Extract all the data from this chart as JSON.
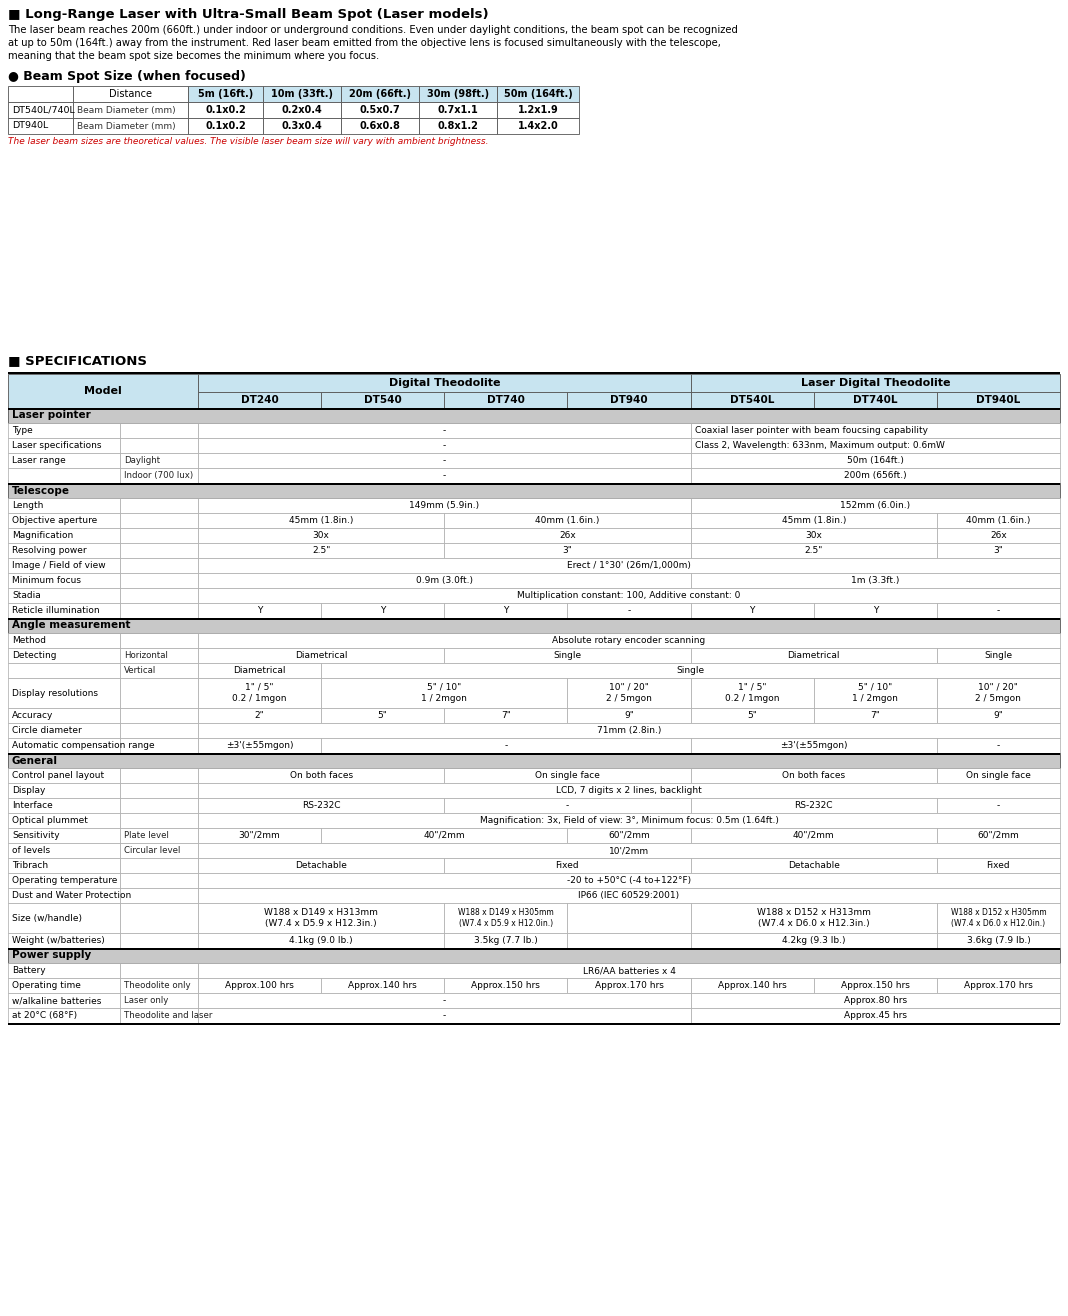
{
  "title": "■ Long-Range Laser with Ultra-Small Beam Spot (Laser models)",
  "intro_lines": [
    "The laser beam reaches 200m (660ft.) under indoor or underground conditions. Even under daylight conditions, the beam spot can be recognized",
    "at up to 50m (164ft.) away from the instrument. Red laser beam emitted from the objective lens is focused simultaneously with the telescope,",
    "meaning that the beam spot size becomes the minimum where you focus."
  ],
  "beam_spot_title": "● Beam Spot Size (when focused)",
  "beam_table_headers": [
    "",
    "Distance",
    "5m (16ft.)",
    "10m (33ft.)",
    "20m (66ft.)",
    "30m (98ft.)",
    "50m (164ft.)"
  ],
  "beam_table_col_widths": [
    65,
    115,
    75,
    78,
    78,
    78,
    82
  ],
  "beam_table_rows": [
    [
      "DT540L/740L",
      "Beam Diameter (mm)",
      "0.1x0.2",
      "0.2x0.4",
      "0.5x0.7",
      "0.7x1.1",
      "1.2x1.9"
    ],
    [
      "DT940L",
      "Beam Diameter (mm)",
      "0.1x0.2",
      "0.3x0.4",
      "0.6x0.8",
      "0.8x1.2",
      "1.4x2.0"
    ]
  ],
  "beam_note": "The laser beam sizes are theoretical values. The visible laser beam size will vary with ambient brightness.",
  "spec_title": "■ SPECIFICATIONS",
  "col_header1": "Digital Theodolite",
  "col_header2": "Laser Digital Theodolite",
  "models": [
    "DT240",
    "DT540",
    "DT740",
    "DT940",
    "DT540L",
    "DT740L",
    "DT940L"
  ],
  "header_bg": "#c8e4f0",
  "section_bg": "#c8c8c8",
  "row_bg": "#ffffff",
  "border_dark": "#000000",
  "border_light": "#aaaaaa",
  "sections": [
    {
      "name": "Laser pointer",
      "rows": [
        {
          "label": "Type",
          "sub": "",
          "cells": [
            {
              "span": 4,
              "val": "-",
              "align": "center"
            },
            {
              "span": 3,
              "val": "Coaxial laser pointer with beam foucsing capability",
              "align": "left"
            }
          ]
        },
        {
          "label": "Laser specifications",
          "sub": "",
          "cells": [
            {
              "span": 4,
              "val": "-",
              "align": "center"
            },
            {
              "span": 3,
              "val": "Class 2, Wavelength: 633nm, Maximum output: 0.6mW",
              "align": "left"
            }
          ]
        },
        {
          "label": "Laser range",
          "sub": "Daylight",
          "cells": [
            {
              "span": 4,
              "val": "-",
              "align": "center"
            },
            {
              "span": 3,
              "val": "50m (164ft.)",
              "align": "center"
            }
          ]
        },
        {
          "label": "",
          "sub": "Indoor (700 lux)",
          "cells": [
            {
              "span": 4,
              "val": "-",
              "align": "center"
            },
            {
              "span": 3,
              "val": "200m (656ft.)",
              "align": "center"
            }
          ]
        }
      ]
    },
    {
      "name": "Telescope",
      "rows": [
        {
          "label": "Length",
          "sub": "",
          "cells": [
            {
              "span": 4,
              "val": "149mm (5.9in.)",
              "align": "center"
            },
            {
              "span": 3,
              "val": "152mm (6.0in.)",
              "align": "center"
            }
          ]
        },
        {
          "label": "Objective aperture",
          "sub": "",
          "cells": [
            {
              "span": 2,
              "val": "45mm (1.8in.)",
              "align": "center"
            },
            {
              "span": 2,
              "val": "40mm (1.6in.)",
              "align": "center"
            },
            {
              "span": 2,
              "val": "45mm (1.8in.)",
              "align": "center"
            },
            {
              "span": 1,
              "val": "40mm (1.6in.)",
              "align": "center"
            }
          ]
        },
        {
          "label": "Magnification",
          "sub": "",
          "cells": [
            {
              "span": 2,
              "val": "30x",
              "align": "center"
            },
            {
              "span": 2,
              "val": "26x",
              "align": "center"
            },
            {
              "span": 2,
              "val": "30x",
              "align": "center"
            },
            {
              "span": 1,
              "val": "26x",
              "align": "center"
            }
          ]
        },
        {
          "label": "Resolving power",
          "sub": "",
          "cells": [
            {
              "span": 2,
              "val": "2.5\"",
              "align": "center"
            },
            {
              "span": 2,
              "val": "3\"",
              "align": "center"
            },
            {
              "span": 2,
              "val": "2.5\"",
              "align": "center"
            },
            {
              "span": 1,
              "val": "3\"",
              "align": "center"
            }
          ]
        },
        {
          "label": "Image / Field of view",
          "sub": "",
          "cells": [
            {
              "span": 7,
              "val": "Erect / 1°30' (26m/1,000m)",
              "align": "center"
            }
          ]
        },
        {
          "label": "Minimum focus",
          "sub": "",
          "cells": [
            {
              "span": 4,
              "val": "0.9m (3.0ft.)",
              "align": "center"
            },
            {
              "span": 3,
              "val": "1m (3.3ft.)",
              "align": "center"
            }
          ]
        },
        {
          "label": "Stadia",
          "sub": "",
          "cells": [
            {
              "span": 7,
              "val": "Multiplication constant: 100, Additive constant: 0",
              "align": "center"
            }
          ]
        },
        {
          "label": "Reticle illumination",
          "sub": "",
          "cells": [
            {
              "span": 1,
              "val": "Y",
              "align": "center"
            },
            {
              "span": 1,
              "val": "Y",
              "align": "center"
            },
            {
              "span": 1,
              "val": "Y",
              "align": "center"
            },
            {
              "span": 1,
              "val": "-",
              "align": "center"
            },
            {
              "span": 1,
              "val": "Y",
              "align": "center"
            },
            {
              "span": 1,
              "val": "Y",
              "align": "center"
            },
            {
              "span": 1,
              "val": "-",
              "align": "center"
            }
          ]
        }
      ]
    },
    {
      "name": "Angle measurement",
      "rows": [
        {
          "label": "Method",
          "sub": "",
          "cells": [
            {
              "span": 7,
              "val": "Absolute rotary encoder scanning",
              "align": "center"
            }
          ]
        },
        {
          "label": "Detecting",
          "sub": "Horizontal",
          "cells": [
            {
              "span": 2,
              "val": "Diametrical",
              "align": "center"
            },
            {
              "span": 2,
              "val": "Single",
              "align": "center"
            },
            {
              "span": 2,
              "val": "Diametrical",
              "align": "center"
            },
            {
              "span": 1,
              "val": "Single",
              "align": "center"
            }
          ]
        },
        {
          "label": "",
          "sub": "Vertical",
          "cells": [
            {
              "span": 1,
              "val": "Diametrical",
              "align": "center"
            },
            {
              "span": 6,
              "val": "Single",
              "align": "center"
            }
          ]
        },
        {
          "label": "Display resolutions",
          "sub": "",
          "multiline": true,
          "cells": [
            {
              "span": 1,
              "val": "1\" / 5\"\n0.2 / 1mgon",
              "align": "center"
            },
            {
              "span": 2,
              "val": "5\" / 10\"\n1 / 2mgon",
              "align": "center"
            },
            {
              "span": 1,
              "val": "10\" / 20\"\n2 / 5mgon",
              "align": "center"
            },
            {
              "span": 1,
              "val": "1\" / 5\"\n0.2 / 1mgon",
              "align": "center"
            },
            {
              "span": 1,
              "val": "5\" / 10\"\n1 / 2mgon",
              "align": "center"
            },
            {
              "span": 1,
              "val": "10\" / 20\"\n2 / 5mgon",
              "align": "center"
            }
          ]
        },
        {
          "label": "Accuracy",
          "sub": "",
          "cells": [
            {
              "span": 1,
              "val": "2\"",
              "align": "center"
            },
            {
              "span": 1,
              "val": "5\"",
              "align": "center"
            },
            {
              "span": 1,
              "val": "7\"",
              "align": "center"
            },
            {
              "span": 1,
              "val": "9\"",
              "align": "center"
            },
            {
              "span": 1,
              "val": "5\"",
              "align": "center"
            },
            {
              "span": 1,
              "val": "7\"",
              "align": "center"
            },
            {
              "span": 1,
              "val": "9\"",
              "align": "center"
            }
          ]
        },
        {
          "label": "Circle diameter",
          "sub": "",
          "cells": [
            {
              "span": 7,
              "val": "71mm (2.8in.)",
              "align": "center"
            }
          ]
        },
        {
          "label": "Automatic compensation range",
          "sub": "",
          "cells": [
            {
              "span": 1,
              "val": "±3'(±55mgon)",
              "align": "center"
            },
            {
              "span": 3,
              "val": "-",
              "align": "center"
            },
            {
              "span": 2,
              "val": "±3'(±55mgon)",
              "align": "center"
            },
            {
              "span": 1,
              "val": "-",
              "align": "center"
            }
          ]
        }
      ]
    },
    {
      "name": "General",
      "rows": [
        {
          "label": "Control panel layout",
          "sub": "",
          "cells": [
            {
              "span": 2,
              "val": "On both faces",
              "align": "center"
            },
            {
              "span": 2,
              "val": "On single face",
              "align": "center"
            },
            {
              "span": 2,
              "val": "On both faces",
              "align": "center"
            },
            {
              "span": 1,
              "val": "On single face",
              "align": "center"
            }
          ]
        },
        {
          "label": "Display",
          "sub": "",
          "cells": [
            {
              "span": 7,
              "val": "LCD, 7 digits x 2 lines, backlight",
              "align": "center"
            }
          ]
        },
        {
          "label": "Interface",
          "sub": "",
          "cells": [
            {
              "span": 2,
              "val": "RS-232C",
              "align": "center"
            },
            {
              "span": 2,
              "val": "-",
              "align": "center"
            },
            {
              "span": 2,
              "val": "RS-232C",
              "align": "center"
            },
            {
              "span": 1,
              "val": "-",
              "align": "center"
            }
          ]
        },
        {
          "label": "Optical plummet",
          "sub": "",
          "cells": [
            {
              "span": 7,
              "val": "Magnification: 3x, Field of view: 3°, Minimum focus: 0.5m (1.64ft.)",
              "align": "center"
            }
          ]
        },
        {
          "label": "Sensitivity",
          "sub": "Plate level",
          "cells": [
            {
              "span": 1,
              "val": "30\"/2mm",
              "align": "center"
            },
            {
              "span": 2,
              "val": "40\"/2mm",
              "align": "center"
            },
            {
              "span": 1,
              "val": "60\"/2mm",
              "align": "center"
            },
            {
              "span": 2,
              "val": "40\"/2mm",
              "align": "center"
            },
            {
              "span": 1,
              "val": "60\"/2mm",
              "align": "center"
            }
          ]
        },
        {
          "label": "of levels",
          "sub": "Circular level",
          "cells": [
            {
              "span": 7,
              "val": "10'/2mm",
              "align": "center"
            }
          ]
        },
        {
          "label": "Tribrach",
          "sub": "",
          "cells": [
            {
              "span": 2,
              "val": "Detachable",
              "align": "center"
            },
            {
              "span": 2,
              "val": "Fixed",
              "align": "center"
            },
            {
              "span": 2,
              "val": "Detachable",
              "align": "center"
            },
            {
              "span": 1,
              "val": "Fixed",
              "align": "center"
            }
          ]
        },
        {
          "label": "Operating temperature",
          "sub": "",
          "cells": [
            {
              "span": 7,
              "val": "-20 to +50°C (-4 to+122°F)",
              "align": "center"
            }
          ]
        },
        {
          "label": "Dust and Water Protection",
          "sub": "",
          "cells": [
            {
              "span": 7,
              "val": "IP66 (IEC 60529:2001)",
              "align": "center"
            }
          ]
        },
        {
          "label": "Size (w/handle)",
          "sub": "",
          "multiline": true,
          "cells": [
            {
              "span": 2,
              "val": "W188 x D149 x H313mm\n(W7.4 x D5.9 x H12.3in.)",
              "align": "center"
            },
            {
              "span": 1,
              "val": "W188 x D149 x H305mm\n(W7.4 x D5.9 x H12.0in.)",
              "align": "center",
              "small": true
            },
            {
              "span": 1,
              "val": "",
              "align": "center"
            },
            {
              "span": 2,
              "val": "W188 x D152 x H313mm\n(W7.4 x D6.0 x H12.3in.)",
              "align": "center"
            },
            {
              "span": 1,
              "val": "W188 x D152 x H305mm\n(W7.4 x D6.0 x H12.0in.)",
              "align": "center",
              "small": true
            }
          ]
        },
        {
          "label": "Weight (w/batteries)",
          "sub": "",
          "cells": [
            {
              "span": 2,
              "val": "4.1kg (9.0 lb.)",
              "align": "center"
            },
            {
              "span": 1,
              "val": "3.5kg (7.7 lb.)",
              "align": "center"
            },
            {
              "span": 1,
              "val": "",
              "align": "center"
            },
            {
              "span": 2,
              "val": "4.2kg (9.3 lb.)",
              "align": "center"
            },
            {
              "span": 1,
              "val": "3.6kg (7.9 lb.)",
              "align": "center"
            }
          ]
        }
      ]
    },
    {
      "name": "Power supply",
      "rows": [
        {
          "label": "Battery",
          "sub": "",
          "cells": [
            {
              "span": 7,
              "val": "LR6/AA batteries x 4",
              "align": "center"
            }
          ]
        },
        {
          "label": "Operating time",
          "sub": "Theodolite only",
          "cells": [
            {
              "span": 1,
              "val": "Approx.100 hrs",
              "align": "center"
            },
            {
              "span": 1,
              "val": "Approx.140 hrs",
              "align": "center"
            },
            {
              "span": 1,
              "val": "Approx.150 hrs",
              "align": "center"
            },
            {
              "span": 1,
              "val": "Approx.170 hrs",
              "align": "center"
            },
            {
              "span": 1,
              "val": "Approx.140 hrs",
              "align": "center"
            },
            {
              "span": 1,
              "val": "Approx.150 hrs",
              "align": "center"
            },
            {
              "span": 1,
              "val": "Approx.170 hrs",
              "align": "center"
            }
          ]
        },
        {
          "label": "w/alkaline batteries",
          "sub": "Laser only",
          "cells": [
            {
              "span": 4,
              "val": "-",
              "align": "center"
            },
            {
              "span": 3,
              "val": "Approx.80 hrs",
              "align": "center"
            }
          ]
        },
        {
          "label": "at 20°C (68°F)",
          "sub": "Theodolite and laser",
          "cells": [
            {
              "span": 4,
              "val": "-",
              "align": "center"
            },
            {
              "span": 3,
              "val": "Approx.45 hrs",
              "align": "center"
            }
          ]
        }
      ]
    }
  ]
}
